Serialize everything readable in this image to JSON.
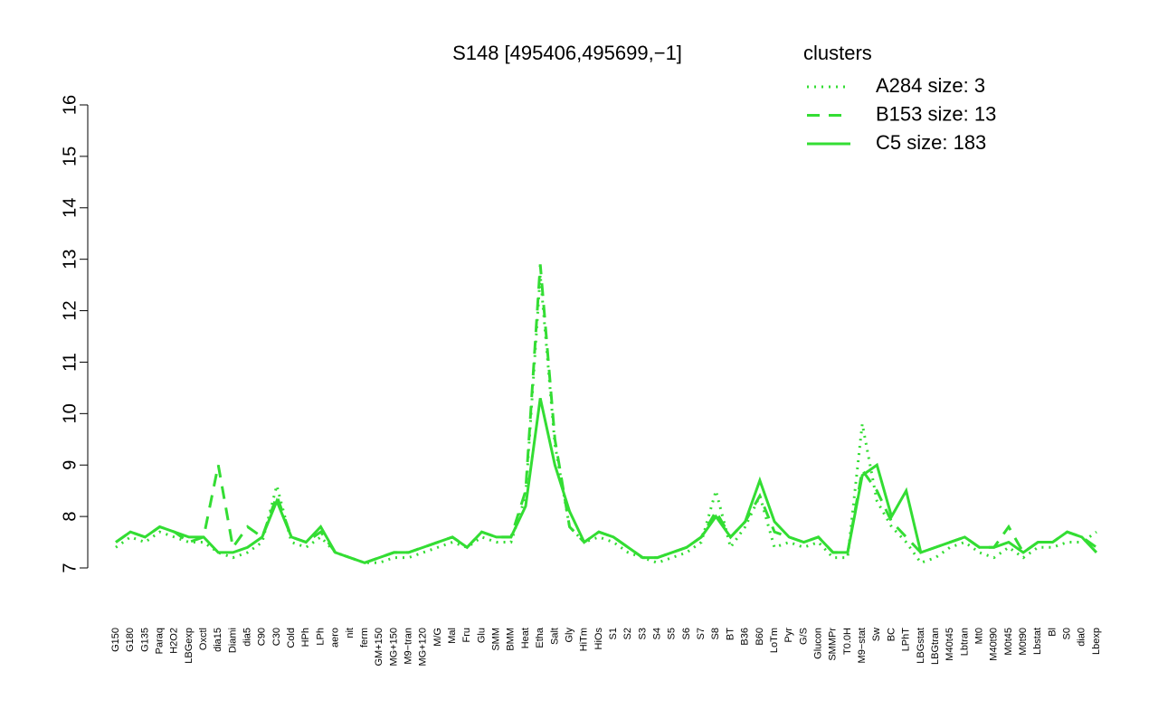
{
  "chart_data": {
    "type": "line",
    "title": "S148 [495406,495699,−1]",
    "legend_title": "clusters",
    "legend_color": "#33dd33",
    "categories": [
      "G150",
      "G180",
      "G135",
      "Paraq",
      "H2O2",
      "LBGexp",
      "Oxctl",
      "dia15",
      "Diami",
      "dia5",
      "C90",
      "C30",
      "Cold",
      "HPh",
      "LPh",
      "aero",
      "nit",
      "ferm",
      "GM+150",
      "MG+150",
      "M9−tran",
      "MG+120",
      "M/G",
      "Mal",
      "Fru",
      "Glu",
      "SMM",
      "BMM",
      "Heat",
      "Etha",
      "Salt",
      "Gly",
      "HiTm",
      "HiOs",
      "S1",
      "S2",
      "S3",
      "S4",
      "S5",
      "S6",
      "S7",
      "S8",
      "BT",
      "B36",
      "B60",
      "LoTm",
      "Pyr",
      "G/S",
      "Glucon",
      "SMMPr",
      "T0.0H",
      "M9−stat",
      "Sw",
      "BC",
      "LPhT",
      "LBGstat",
      "LBGtran",
      "M40t45",
      "Lbtran",
      "Mt0",
      "M40t90",
      "M0t45",
      "M0t90",
      "Lbstat",
      "Bl",
      "S0",
      "dia0",
      "Lbexp"
    ],
    "series": [
      {
        "name": "A284 size: 3",
        "color": "#33dd33",
        "dash": "2,6",
        "values": [
          7.4,
          7.6,
          7.5,
          7.7,
          7.6,
          7.5,
          7.5,
          7.3,
          7.2,
          7.3,
          7.5,
          8.6,
          7.5,
          7.4,
          7.6,
          7.3,
          7.2,
          7.1,
          7.1,
          7.2,
          7.2,
          7.3,
          7.4,
          7.5,
          7.4,
          7.6,
          7.5,
          7.5,
          8.4,
          12.7,
          9.4,
          7.8,
          7.5,
          7.6,
          7.5,
          7.3,
          7.2,
          7.1,
          7.2,
          7.3,
          7.5,
          8.5,
          7.4,
          7.8,
          8.4,
          7.4,
          7.5,
          7.4,
          7.5,
          7.2,
          7.2,
          9.8,
          8.3,
          7.8,
          7.5,
          7.1,
          7.2,
          7.4,
          7.5,
          7.3,
          7.2,
          7.4,
          7.2,
          7.4,
          7.4,
          7.5,
          7.5,
          7.7
        ]
      },
      {
        "name": "B153 size: 13",
        "color": "#33dd33",
        "dash": "14,10",
        "values": [
          7.5,
          7.7,
          7.6,
          7.8,
          7.7,
          7.5,
          7.6,
          9.0,
          7.4,
          7.8,
          7.6,
          8.4,
          7.6,
          7.5,
          7.7,
          7.3,
          7.2,
          7.1,
          7.2,
          7.3,
          7.3,
          7.4,
          7.5,
          7.6,
          7.4,
          7.7,
          7.6,
          7.6,
          8.5,
          12.9,
          9.5,
          7.8,
          7.5,
          7.7,
          7.6,
          7.4,
          7.2,
          7.2,
          7.3,
          7.4,
          7.6,
          8.1,
          7.6,
          7.9,
          8.4,
          7.7,
          7.6,
          7.5,
          7.6,
          7.3,
          7.3,
          8.9,
          8.5,
          7.9,
          7.6,
          7.3,
          7.4,
          7.5,
          7.6,
          7.4,
          7.4,
          7.8,
          7.3,
          7.5,
          7.5,
          7.7,
          7.6,
          7.4
        ]
      },
      {
        "name": "C5 size: 183",
        "color": "#33dd33",
        "dash": "",
        "values": [
          7.5,
          7.7,
          7.6,
          7.8,
          7.7,
          7.6,
          7.6,
          7.3,
          7.3,
          7.4,
          7.6,
          8.3,
          7.6,
          7.5,
          7.8,
          7.3,
          7.2,
          7.1,
          7.2,
          7.3,
          7.3,
          7.4,
          7.5,
          7.6,
          7.4,
          7.7,
          7.6,
          7.6,
          8.2,
          10.3,
          9.0,
          8.1,
          7.5,
          7.7,
          7.6,
          7.4,
          7.2,
          7.2,
          7.3,
          7.4,
          7.6,
          8.0,
          7.6,
          7.9,
          8.7,
          7.9,
          7.6,
          7.5,
          7.6,
          7.3,
          7.3,
          8.8,
          9.0,
          8.0,
          8.5,
          7.3,
          7.4,
          7.5,
          7.6,
          7.4,
          7.4,
          7.5,
          7.3,
          7.5,
          7.5,
          7.7,
          7.6,
          7.3
        ]
      }
    ],
    "ylim": [
      7,
      16
    ],
    "yticks": [
      7,
      8,
      9,
      10,
      11,
      12,
      13,
      14,
      15,
      16
    ]
  }
}
